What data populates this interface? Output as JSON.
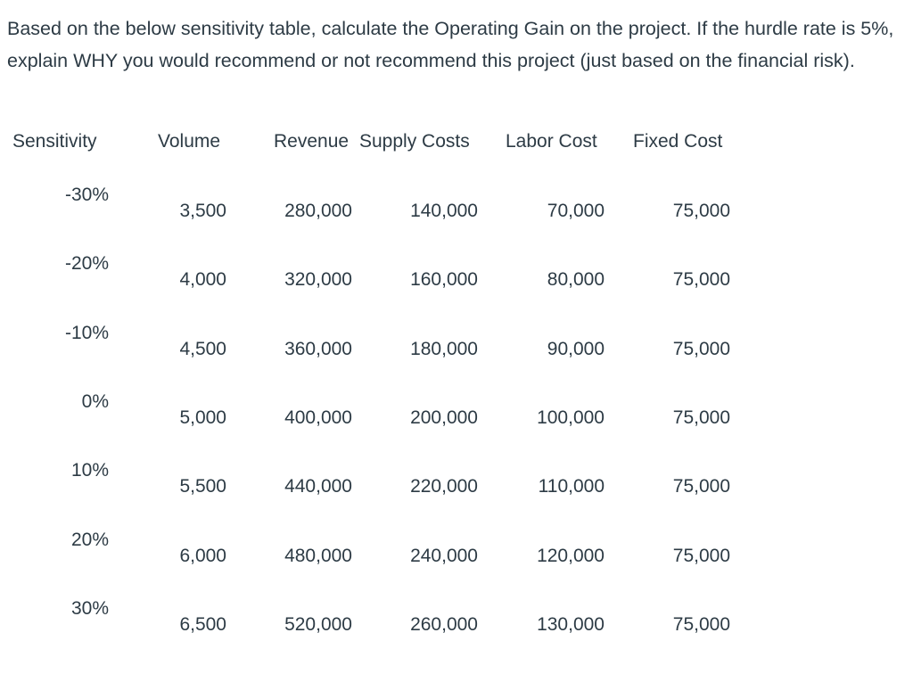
{
  "question": "Based on the below sensitivity table, calculate the Operating Gain on the project. If the hurdle rate is 5%, explain WHY you would recommend or not recommend this project (just based on the financial risk).",
  "table": {
    "headers": [
      "Sensitivity",
      "Volume",
      "Revenue",
      "Supply Costs",
      "Labor Cost",
      "Fixed Cost"
    ],
    "rows": [
      {
        "sensitivity": "-30%",
        "volume": "3,500",
        "revenue": "280,000",
        "supply": "140,000",
        "labor": "70,000",
        "fixed": "75,000"
      },
      {
        "sensitivity": "-20%",
        "volume": "4,000",
        "revenue": "320,000",
        "supply": "160,000",
        "labor": "80,000",
        "fixed": "75,000"
      },
      {
        "sensitivity": "-10%",
        "volume": "4,500",
        "revenue": "360,000",
        "supply": "180,000",
        "labor": "90,000",
        "fixed": "75,000"
      },
      {
        "sensitivity": "0%",
        "volume": "5,000",
        "revenue": "400,000",
        "supply": "200,000",
        "labor": "100,000",
        "fixed": "75,000"
      },
      {
        "sensitivity": "10%",
        "volume": "5,500",
        "revenue": "440,000",
        "supply": "220,000",
        "labor": "110,000",
        "fixed": "75,000"
      },
      {
        "sensitivity": "20%",
        "volume": "6,000",
        "revenue": "480,000",
        "supply": "240,000",
        "labor": "120,000",
        "fixed": "75,000"
      },
      {
        "sensitivity": "30%",
        "volume": "6,500",
        "revenue": "520,000",
        "supply": "260,000",
        "labor": "130,000",
        "fixed": "75,000"
      }
    ]
  }
}
